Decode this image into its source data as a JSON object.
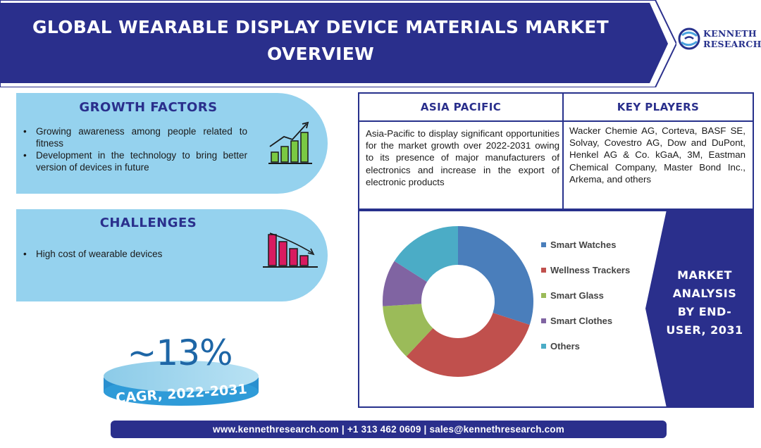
{
  "header": {
    "title": "GLOBAL WEARABLE DISPLAY DEVICE MATERIALS MARKET OVERVIEW",
    "banner_color": "#2a2f8c"
  },
  "logo": {
    "text": "KENNETH RESEARCH",
    "icon": "globe-swirl-icon"
  },
  "growth_factors": {
    "title": "GROWTH FACTORS",
    "items": [
      "Growing awareness among people related to fitness",
      "Development in the technology to bring better version of devices in future"
    ],
    "icon": "bar-chart-up-icon"
  },
  "challenges": {
    "title": "CHALLENGES",
    "items": [
      "High cost of wearable devices"
    ],
    "icon": "bar-chart-down-icon"
  },
  "cagr": {
    "value": "~13%",
    "period": "CAGR, 2022-2031"
  },
  "asia_pacific": {
    "title": "ASIA PACIFIC",
    "text": "Asia-Pacific to display significant opportunities for the market growth over 2022-2031 owing to its presence of major manufacturers of electronics and increase in the export of electronic products"
  },
  "key_players": {
    "title": "KEY PLAYERS",
    "text": "Wacker Chemie AG, Corteva, BASF SE, Solvay, Covestro AG, Dow and DuPont, Henkel AG & Co. kGaA, 3M, Eastman Chemical Company, Master Bond Inc., Arkema, and others"
  },
  "market_analysis": {
    "label": "MARKET ANALYSIS BY END-USER, 2031"
  },
  "chart_data": {
    "type": "pie",
    "donut": true,
    "categories": [
      "Smart Watches",
      "Wellness Trackers",
      "Smart Glass",
      "Smart Clothes",
      "Others"
    ],
    "values": [
      30,
      32,
      12,
      10,
      16
    ],
    "colors": [
      "#4a7ebb",
      "#c0504d",
      "#9bbb59",
      "#8064a2",
      "#4bacc6"
    ],
    "legend_position": "right",
    "title": ""
  },
  "footer": {
    "contact": "www.kennethresearch.com | +1 313 462 0609 | sales@kennethresearch.com"
  }
}
